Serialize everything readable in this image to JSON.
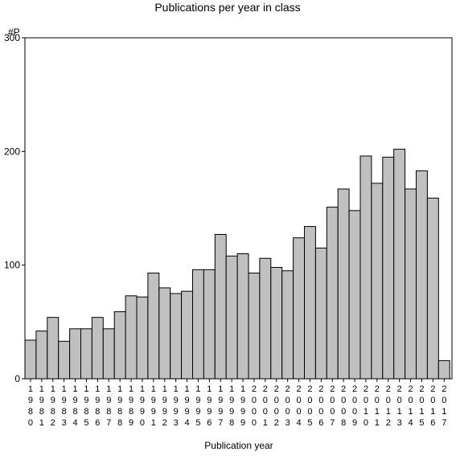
{
  "chart_data": {
    "type": "bar",
    "title": "Publications per year in class",
    "ylabel": "#P",
    "xlabel": "Publication year",
    "ylim": [
      0,
      300
    ],
    "yticks": [
      0,
      100,
      200,
      300
    ],
    "grid": false,
    "categories": [
      "1980",
      "1981",
      "1982",
      "1983",
      "1984",
      "1985",
      "1986",
      "1987",
      "1988",
      "1989",
      "1990",
      "1991",
      "1992",
      "1993",
      "1994",
      "1995",
      "1996",
      "1997",
      "1998",
      "1999",
      "2000",
      "2001",
      "2002",
      "2003",
      "2004",
      "2005",
      "2006",
      "2007",
      "2008",
      "2009",
      "2010",
      "2011",
      "2012",
      "2013",
      "2014",
      "2015",
      "2016",
      "2017"
    ],
    "values": [
      34,
      42,
      54,
      33,
      44,
      44,
      54,
      44,
      59,
      73,
      72,
      93,
      80,
      75,
      77,
      96,
      96,
      127,
      108,
      110,
      93,
      106,
      98,
      95,
      124,
      134,
      115,
      151,
      167,
      148,
      196,
      172,
      195,
      202,
      167,
      183,
      159,
      16
    ]
  },
  "colors": {
    "bar_fill": "#c0c0c0",
    "bar_stroke": "#000000",
    "axis": "#000000",
    "background": "#ffffff"
  }
}
